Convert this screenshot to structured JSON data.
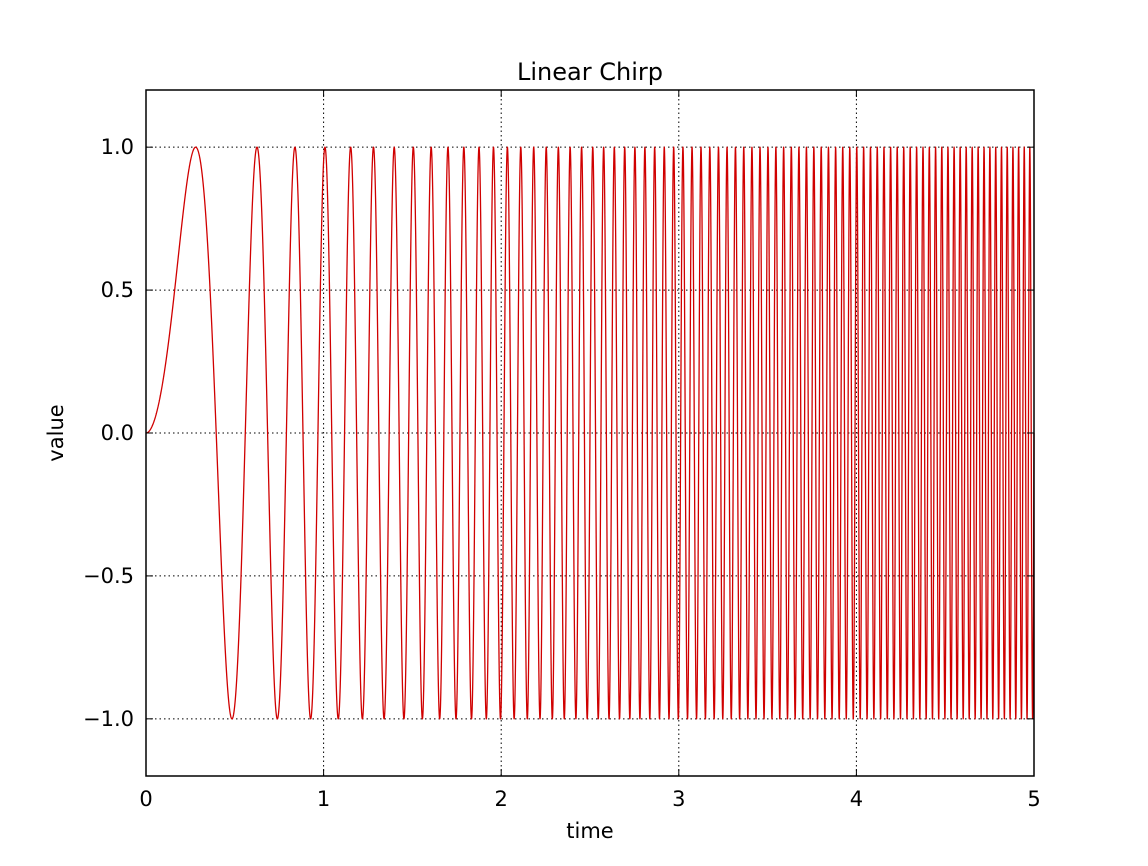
{
  "chart_data": {
    "type": "line",
    "title": "Linear Chirp",
    "xlabel": "time",
    "ylabel": "value",
    "xlim": [
      0,
      5
    ],
    "ylim": [
      -1.2,
      1.2
    ],
    "xticks": [
      0,
      1,
      2,
      3,
      4,
      5
    ],
    "xtick_labels": [
      "0",
      "1",
      "2",
      "3",
      "4",
      "5"
    ],
    "yticks": [
      1.0,
      0.5,
      0.0,
      -0.5,
      -1.0
    ],
    "ytick_labels": [
      "1.0",
      "0.5",
      "0.0",
      "−0.5",
      "−1.0"
    ],
    "grid": true,
    "series": [
      {
        "function": "sin(2π·(f0·t + k·t²/2))",
        "f0": 0.0,
        "k": 6.4,
        "x_start": 0,
        "x_end": 5,
        "color": "#d00000"
      }
    ]
  }
}
